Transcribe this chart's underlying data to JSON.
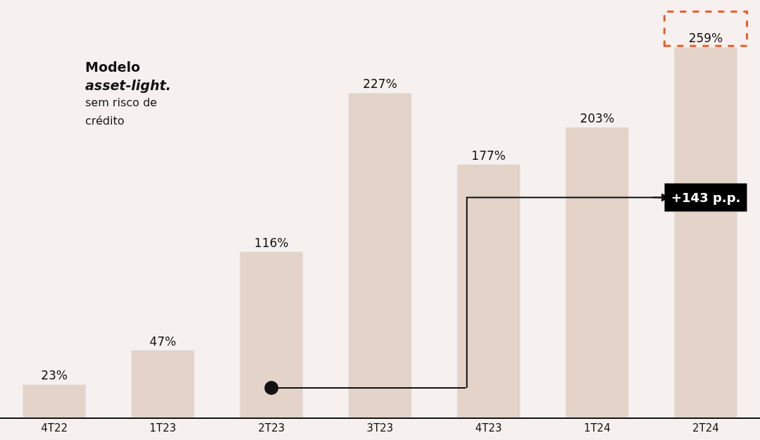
{
  "chart_data": {
    "type": "bar",
    "categories": [
      "4T22",
      "1T23",
      "2T23",
      "3T23",
      "4T23",
      "1T24",
      "2T24"
    ],
    "values": [
      23,
      47,
      116,
      227,
      177,
      203,
      259
    ],
    "value_labels": [
      "23%",
      "47%",
      "116%",
      "227%",
      "177%",
      "203%",
      "259%"
    ],
    "color": "#e3d3c8",
    "annotations": [
      "Modelo",
      "asset-light.",
      "sem risco de",
      "crédito",
      "+143 p.p."
    ],
    "grid": false,
    "legend": false
  }
}
